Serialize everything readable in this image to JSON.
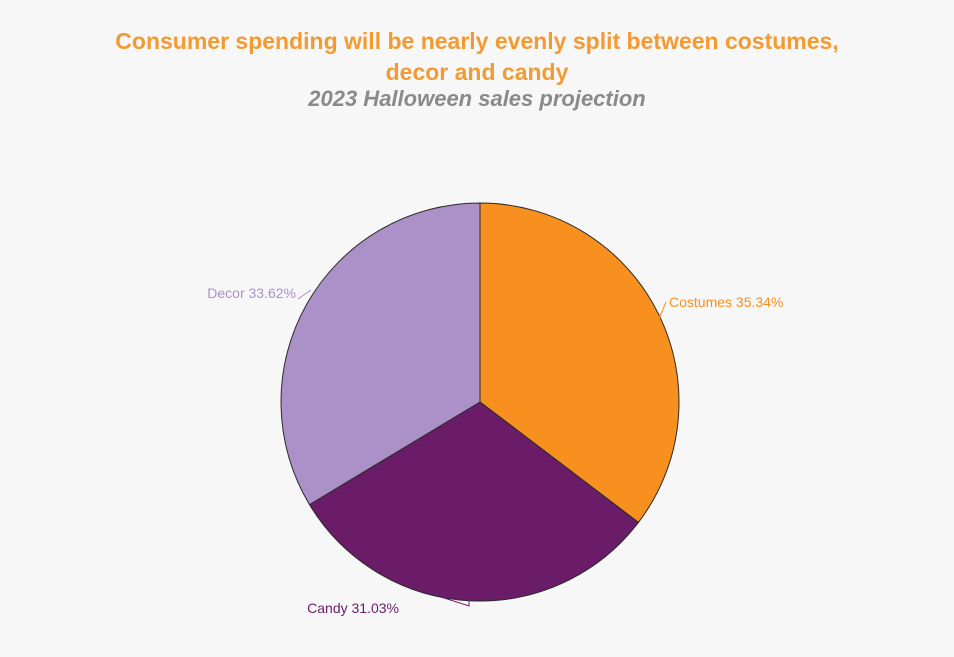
{
  "header": {
    "title_line1": "Consumer spending will be nearly evenly split between costumes,",
    "title_line2": "decor and candy",
    "subtitle": "2023 Halloween sales projection"
  },
  "colors": {
    "title": "#f39a33",
    "subtitle": "#8a8a8a",
    "background": "#f7f7f7",
    "costumes": "#f7901e",
    "candy": "#6b1c68",
    "decor": "#ab91c7",
    "outline": "#2a2a2a"
  },
  "chart_data": {
    "type": "pie",
    "title": "Consumer spending will be nearly evenly split between costumes, decor and candy",
    "subtitle": "2023 Halloween sales projection",
    "start": "12 o'clock, clockwise",
    "slices": [
      {
        "key": "costumes",
        "name": "Costumes",
        "value": 35.34,
        "label": "Costumes 35.34%"
      },
      {
        "key": "candy",
        "name": "Candy",
        "value": 31.03,
        "label": "Candy 31.03%"
      },
      {
        "key": "decor",
        "name": "Decor",
        "value": 33.62,
        "label": "Decor 33.62%"
      }
    ],
    "unit": "%"
  }
}
